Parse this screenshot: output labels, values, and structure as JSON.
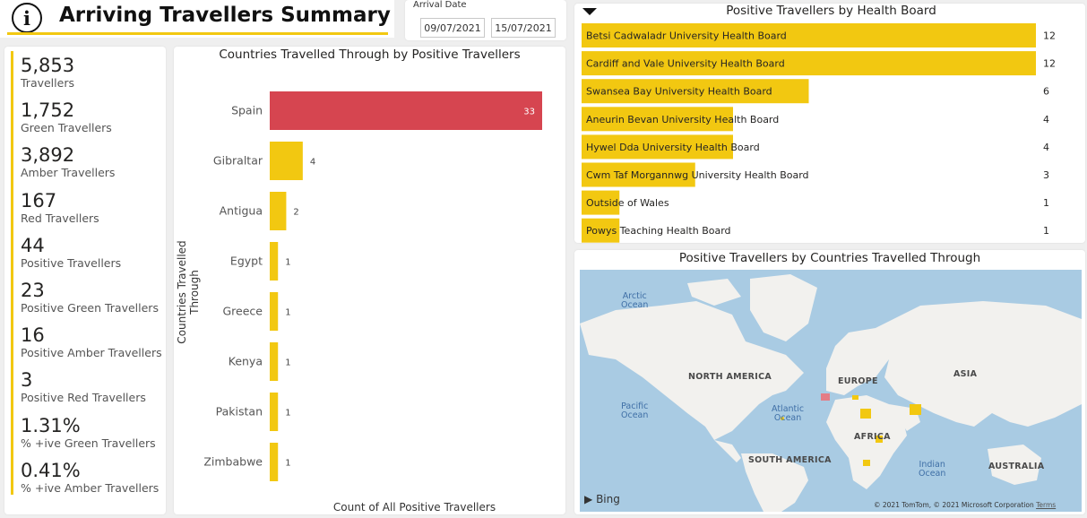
{
  "header": {
    "title": "Arriving Travellers Summary",
    "info_icon": "i"
  },
  "filter": {
    "label": "Arrival Date",
    "start": "09/07/2021",
    "end": "15/07/2021"
  },
  "kpis": [
    {
      "value": "5,853",
      "label": "Travellers"
    },
    {
      "value": "1,752",
      "label": "Green Travellers"
    },
    {
      "value": "3,892",
      "label": "Amber Travellers"
    },
    {
      "value": "167",
      "label": "Red Travellers"
    },
    {
      "value": "44",
      "label": "Positive Travellers"
    },
    {
      "value": "23",
      "label": "Positive Green Travellers"
    },
    {
      "value": "16",
      "label": "Positive Amber Travellers"
    },
    {
      "value": "3",
      "label": "Positive Red Travellers"
    },
    {
      "value": "1.31%",
      "label": "% +ive Green Travellers"
    },
    {
      "value": "0.41%",
      "label": "% +ive Amber Travellers"
    }
  ],
  "colors": {
    "accent": "#f2c811",
    "bar": "#f2c811",
    "highlight": "#d64550",
    "map_water": "#a9cbe3",
    "map_land": "#f2f1ee"
  },
  "chart_data": [
    {
      "type": "bar",
      "orientation": "horizontal",
      "title": "Countries Travelled Through by Positive Travellers",
      "xlabel": "Count of All Positive Travellers",
      "ylabel": "Countries Travelled Through",
      "categories": [
        "Spain",
        "Gibraltar",
        "Antigua",
        "Egypt",
        "Greece",
        "Kenya",
        "Pakistan",
        "Zimbabwe"
      ],
      "values": [
        33,
        4,
        2,
        1,
        1,
        1,
        1,
        1
      ],
      "highlighted": "Spain",
      "xlim": [
        0,
        33
      ]
    },
    {
      "type": "bar",
      "orientation": "horizontal",
      "title": "Positive Travellers by Health Board",
      "categories": [
        "Betsi Cadwaladr University Health Board",
        "Cardiff and Vale University Health Board",
        "Swansea Bay University Health Board",
        "Aneurin Bevan University Health Board",
        "Hywel Dda University Health Board",
        "Cwm Taf Morgannwg University Health Board",
        "Outside of Wales",
        "Powys Teaching Health Board"
      ],
      "values": [
        12,
        12,
        6,
        4,
        4,
        3,
        1,
        1
      ],
      "xlim": [
        0,
        12
      ]
    }
  ],
  "map": {
    "title": "Positive Travellers by Countries Travelled Through",
    "labels": {
      "arctic": "Arctic Ocean",
      "north_america": "NORTH AMERICA",
      "europe": "EUROPE",
      "asia": "ASIA",
      "pacific": "Pacific Ocean",
      "atlantic": "Atlantic Ocean",
      "africa": "AFRICA",
      "south_america": "SOUTH AMERICA",
      "indian": "Indian Ocean",
      "australia": "AUSTRALIA"
    },
    "provider": "Bing",
    "attribution": "© 2021 TomTom, © 2021 Microsoft Corporation",
    "terms": "Terms"
  }
}
